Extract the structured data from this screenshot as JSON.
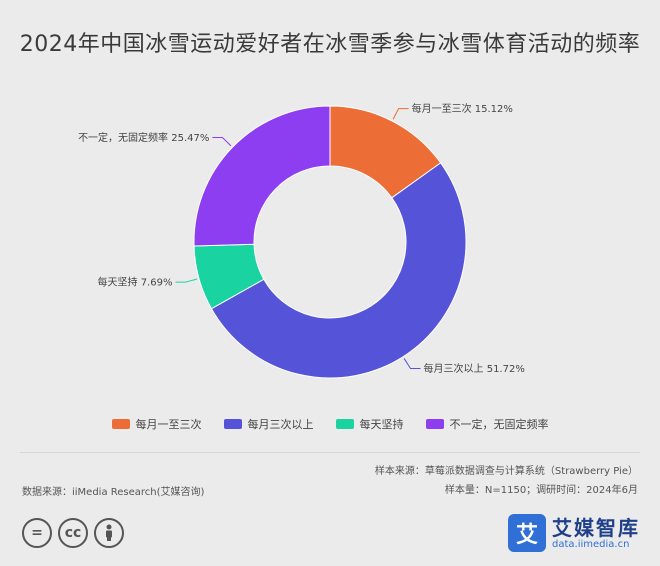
{
  "chart_data": {
    "type": "pie",
    "title": "2024年中国冰雪运动爱好者在冰雪季参与冰雪体育活动的频率",
    "categories": [
      "每月一至三次",
      "每月三次以上",
      "每天坚持",
      "不一定，无固定频率"
    ],
    "values": [
      15.12,
      51.72,
      7.69,
      25.47
    ],
    "value_labels": [
      "每月一至三次 15.12%",
      "每月三次以上 51.72%",
      "每天坚持 7.69%",
      "不一定，无固定频率 25.47%"
    ],
    "colors": [
      "#ec6d35",
      "#5553d8",
      "#19d3a1",
      "#8c3ef0"
    ],
    "legend_position": "bottom",
    "donut": true
  },
  "source": {
    "left": "数据来源：iiMedia Research(艾媒咨询)",
    "right_line1": "样本来源：草莓派数据调查与计算系统（Strawberry Pie）",
    "right_line2": "样本量：N=1150；调研时间：2024年6月"
  },
  "license": {
    "icons": [
      "equals-icon",
      "cc-icon",
      "person-icon"
    ],
    "cc_text": "cc"
  },
  "brand": {
    "mark": "艾",
    "name": "艾媒智库",
    "url": "data.iimedia.cn"
  }
}
